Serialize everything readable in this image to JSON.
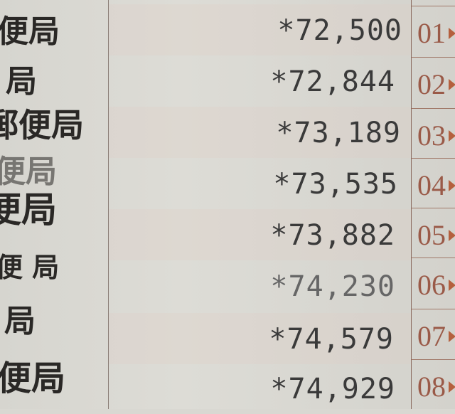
{
  "stamps": [
    "便局",
    "局",
    "郵便局",
    "便局",
    "便局",
    "便 局",
    "局",
    "便局"
  ],
  "rows": [
    {
      "number": "01",
      "amount": "*72,500"
    },
    {
      "number": "02",
      "amount": "*72,844"
    },
    {
      "number": "03",
      "amount": "*73,189"
    },
    {
      "number": "04",
      "amount": "*73,535"
    },
    {
      "number": "05",
      "amount": "*73,882"
    },
    {
      "number": "06",
      "amount": "*74,230"
    },
    {
      "number": "07",
      "amount": "*74,579"
    },
    {
      "number": "08",
      "amount": "*74,929"
    }
  ],
  "colors": {
    "paper": "#d9d8d2",
    "ink": "#3a3a3a",
    "row_number": "#9a5a48",
    "marker": "#b5603e"
  }
}
